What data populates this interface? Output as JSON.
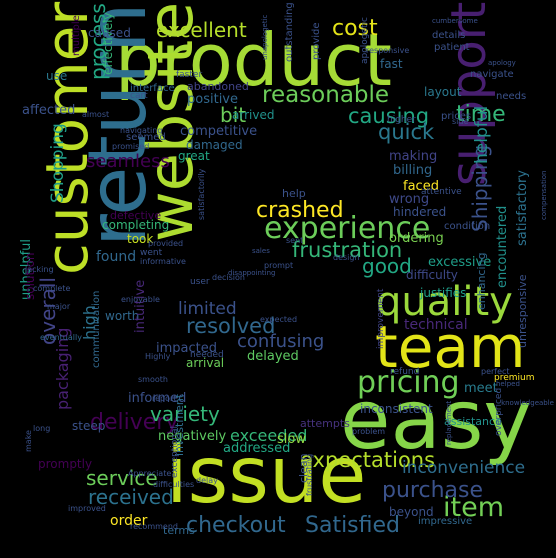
{
  "words": [
    {
      "text": "product",
      "color": "#a5db36"
    },
    {
      "text": "issue",
      "color": "#c2df23"
    },
    {
      "text": "easy",
      "color": "#86d549"
    },
    {
      "text": "return",
      "color": "#2e6e8e"
    },
    {
      "text": "customer",
      "color": "#bddf26"
    },
    {
      "text": "website",
      "color": "#addc30"
    },
    {
      "text": "team",
      "color": "#e2e418"
    },
    {
      "text": "support",
      "color": "#481f70"
    },
    {
      "text": "quality",
      "color": "#9bd93c"
    },
    {
      "text": "experience",
      "color": "#6ccd5a"
    },
    {
      "text": "pricing",
      "color": "#70cf57"
    },
    {
      "text": "crashed",
      "color": "#fde725"
    },
    {
      "text": "frustration",
      "color": "#35b779"
    },
    {
      "text": "expectations",
      "color": "#b5de2b"
    },
    {
      "text": "item",
      "color": "#73d056"
    },
    {
      "text": "Satisfied",
      "color": "#31688e"
    },
    {
      "text": "checkout",
      "color": "#31688e"
    },
    {
      "text": "purchase",
      "color": "#3b528b"
    },
    {
      "text": "delivery",
      "color": "#440154"
    },
    {
      "text": "variety",
      "color": "#35b779"
    },
    {
      "text": "service",
      "color": "#6ccd5a"
    },
    {
      "text": "received",
      "color": "#2c728e"
    },
    {
      "text": "resolved",
      "color": "#31688e"
    },
    {
      "text": "reasonable",
      "color": "#6ccd5a"
    },
    {
      "text": "excellent",
      "color": "#b5de2b"
    },
    {
      "text": "cost",
      "color": "#e5e419"
    },
    {
      "text": "time",
      "color": "#35b779"
    },
    {
      "text": "causing",
      "color": "#22a884"
    },
    {
      "text": "quick",
      "color": "#2a788e"
    },
    {
      "text": "process",
      "color": "#22a884"
    },
    {
      "text": "overall",
      "color": "#414487"
    },
    {
      "text": "bit",
      "color": "#6ccd5a"
    },
    {
      "text": "seamless",
      "color": "#440154"
    },
    {
      "text": "Shopping",
      "color": "#1f9e89"
    },
    {
      "text": "good",
      "color": "#22a884"
    },
    {
      "text": "limited",
      "color": "#3b528b"
    },
    {
      "text": "confusing",
      "color": "#3b528b"
    },
    {
      "text": "inconvenience",
      "color": "#2e6e8e"
    },
    {
      "text": "exceeded",
      "color": "#35b779"
    },
    {
      "text": "Shipping",
      "color": "#3b528b"
    },
    {
      "text": "helpful",
      "color": "#21918c"
    },
    {
      "text": "high",
      "color": "#2c728e"
    },
    {
      "text": "packaging",
      "color": "#482173"
    },
    {
      "text": "technical",
      "color": "#482878"
    },
    {
      "text": "positive",
      "color": "#31688e"
    },
    {
      "text": "making",
      "color": "#414487"
    },
    {
      "text": "satisfactory",
      "color": "#2c728e"
    },
    {
      "text": "encountered",
      "color": "#21918c"
    },
    {
      "text": "excessive",
      "color": "#1f9e89"
    },
    {
      "text": "difficulty",
      "color": "#3e4989"
    },
    {
      "text": "impacted",
      "color": "#3b528b"
    },
    {
      "text": "delayed",
      "color": "#5ec962"
    },
    {
      "text": "informed",
      "color": "#3b528b"
    },
    {
      "text": "negatively",
      "color": "#5ec962"
    },
    {
      "text": "addressed",
      "color": "#22a884"
    },
    {
      "text": "slow",
      "color": "#90d743"
    },
    {
      "text": "inconsistent",
      "color": "#3b528b"
    },
    {
      "text": "meet",
      "color": "#287c8e"
    },
    {
      "text": "wrong",
      "color": "#3e4989"
    },
    {
      "text": "faced",
      "color": "#fde725"
    },
    {
      "text": "ordering",
      "color": "#7ad151"
    },
    {
      "text": "billing",
      "color": "#31688e"
    },
    {
      "text": "effectively",
      "color": "#35b779"
    },
    {
      "text": "affected",
      "color": "#3b528b"
    },
    {
      "text": "competitive",
      "color": "#3b528b"
    },
    {
      "text": "arrived",
      "color": "#21918c"
    },
    {
      "text": "damaged",
      "color": "#31688e"
    },
    {
      "text": "great",
      "color": "#22a884"
    },
    {
      "text": "found",
      "color": "#31688e"
    },
    {
      "text": "took",
      "color": "#c8e020"
    },
    {
      "text": "unhelpful",
      "color": "#1f9e89"
    },
    {
      "text": "solution",
      "color": "#440154"
    },
    {
      "text": "worth",
      "color": "#31688e"
    },
    {
      "text": "arrival",
      "color": "#6ccd5a"
    },
    {
      "text": "completing",
      "color": "#35b779"
    },
    {
      "text": "justifies",
      "color": "#1f9e89"
    },
    {
      "text": "defective",
      "color": "#440154"
    },
    {
      "text": "intuitive",
      "color": "#482878"
    },
    {
      "text": "promptly",
      "color": "#440154"
    },
    {
      "text": "steep",
      "color": "#3b528b"
    },
    {
      "text": "order",
      "color": "#fde725"
    },
    {
      "text": "attempts",
      "color": "#46327e"
    },
    {
      "text": "beyond",
      "color": "#3b528b"
    },
    {
      "text": "assistance",
      "color": "#21918c"
    },
    {
      "text": "clean",
      "color": "#3b528b"
    },
    {
      "text": "terms",
      "color": "#31688e"
    },
    {
      "text": "investment",
      "color": "#2e6e8e"
    },
    {
      "text": "help",
      "color": "#3b528b"
    },
    {
      "text": "provide",
      "color": "#3b528b"
    },
    {
      "text": "caused",
      "color": "#3b528b"
    },
    {
      "text": "use",
      "color": "#2a788e"
    },
    {
      "text": "fast",
      "color": "#31688e"
    },
    {
      "text": "layout",
      "color": "#2a788e"
    },
    {
      "text": "details",
      "color": "#3b528b"
    },
    {
      "text": "patient",
      "color": "#3b528b"
    },
    {
      "text": "navigate",
      "color": "#3b528b"
    },
    {
      "text": "needs",
      "color": "#3b528b"
    },
    {
      "text": "hindered",
      "color": "#3b528b"
    },
    {
      "text": "prices",
      "color": "#3b528b"
    },
    {
      "text": "condition",
      "color": "#3b528b"
    },
    {
      "text": "enhancing",
      "color": "#31688e"
    },
    {
      "text": "unresponsive",
      "color": "#3b528b"
    },
    {
      "text": "interface",
      "color": "#31688e"
    },
    {
      "text": "abandoned",
      "color": "#414487"
    },
    {
      "text": "outstanding",
      "color": "#3b528b"
    },
    {
      "text": "apologetic",
      "color": "#3b528b"
    },
    {
      "text": "higher",
      "color": "#3b528b"
    },
    {
      "text": "impressive",
      "color": "#31688e"
    },
    {
      "text": "improvement",
      "color": "#414487"
    },
    {
      "text": "premium",
      "color": "#fde725"
    },
    {
      "text": "refund",
      "color": "#3b528b"
    },
    {
      "text": "problem",
      "color": "#3b528b"
    },
    {
      "text": "exceptional",
      "color": "#3b528b"
    },
    {
      "text": "responsive",
      "color": "#3b528b"
    },
    {
      "text": "cumbersome",
      "color": "#3b528b"
    },
    {
      "text": "apology",
      "color": "#3b528b"
    },
    {
      "text": "unapologetic",
      "color": "#3b528b"
    },
    {
      "text": "compensation",
      "color": "#3b528b"
    },
    {
      "text": "multiple",
      "color": "#440154"
    },
    {
      "text": "faster",
      "color": "#3b528b"
    },
    {
      "text": "seemed",
      "color": "#3b528b"
    },
    {
      "text": "promised",
      "color": "#3b528b"
    },
    {
      "text": "lacking",
      "color": "#3b528b"
    },
    {
      "text": "went",
      "color": "#3b528b"
    },
    {
      "text": "provided",
      "color": "#3b528b"
    },
    {
      "text": "communication",
      "color": "#31688e"
    },
    {
      "text": "complete",
      "color": "#3b528b"
    },
    {
      "text": "eventually",
      "color": "#31688e"
    },
    {
      "text": "major",
      "color": "#3b528b"
    },
    {
      "text": "enjoyable",
      "color": "#3b528b"
    },
    {
      "text": "informative",
      "color": "#3b528b"
    },
    {
      "text": "decision",
      "color": "#3b528b"
    },
    {
      "text": "user",
      "color": "#3b528b"
    },
    {
      "text": "expected",
      "color": "#3b528b"
    },
    {
      "text": "Highly",
      "color": "#3b528b"
    },
    {
      "text": "needed",
      "color": "#3b528b"
    },
    {
      "text": "smooth",
      "color": "#3b528b"
    },
    {
      "text": "report",
      "color": "#3b528b"
    },
    {
      "text": "long",
      "color": "#3b528b"
    },
    {
      "text": "make",
      "color": "#3b528b"
    },
    {
      "text": "delay",
      "color": "#3b528b"
    },
    {
      "text": "Appreciate",
      "color": "#3b528b"
    },
    {
      "text": "difficulties",
      "color": "#3b528b"
    },
    {
      "text": "improved",
      "color": "#3b528b"
    },
    {
      "text": "recommend",
      "color": "#3b528b"
    },
    {
      "text": "frustrating",
      "color": "#3b528b"
    },
    {
      "text": "overpriced",
      "color": "#3b528b"
    },
    {
      "text": "replacement",
      "color": "#3b528b"
    },
    {
      "text": "knowledgeable",
      "color": "#3b528b"
    },
    {
      "text": "helped",
      "color": "#3b528b"
    },
    {
      "text": "perfect",
      "color": "#3b528b"
    },
    {
      "text": "sent",
      "color": "#3b528b"
    },
    {
      "text": "design",
      "color": "#3b528b"
    },
    {
      "text": "sales",
      "color": "#3b528b"
    },
    {
      "text": "prompt",
      "color": "#3b528b"
    },
    {
      "text": "disappointing",
      "color": "#3b528b"
    },
    {
      "text": "attentive",
      "color": "#3b528b"
    },
    {
      "text": "side",
      "color": "#3b528b"
    },
    {
      "text": "cart",
      "color": "#3b528b"
    },
    {
      "text": "almost",
      "color": "#3b528b"
    },
    {
      "text": "navigating",
      "color": "#3b528b"
    },
    {
      "text": "satisfactorily",
      "color": "#3b528b"
    }
  ]
}
